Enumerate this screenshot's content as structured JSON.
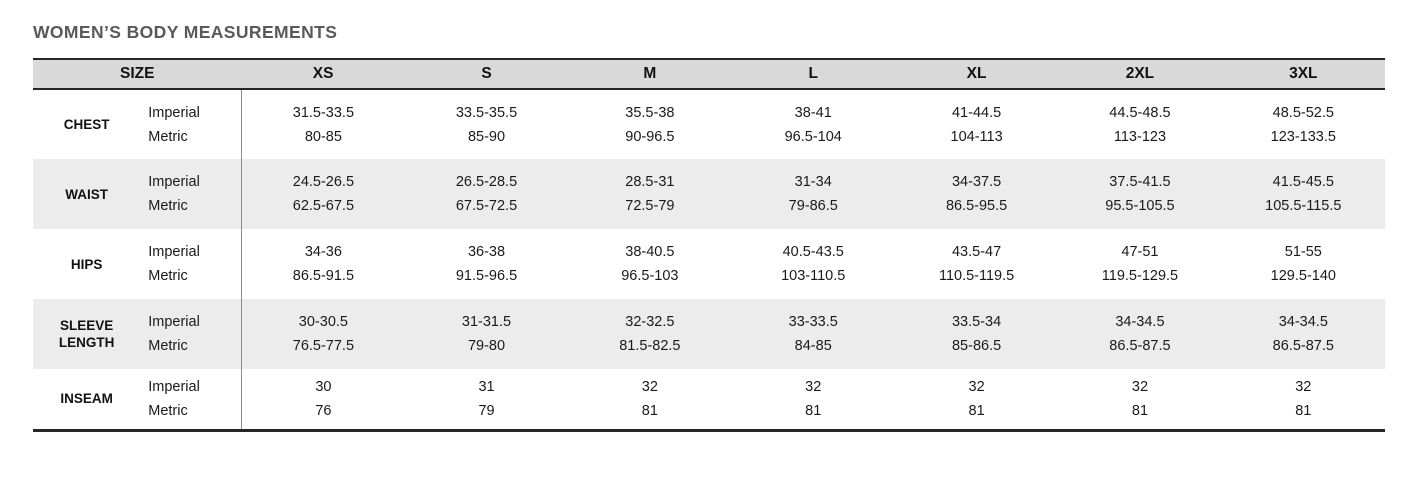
{
  "title": "WOMEN’S BODY MEASUREMENTS",
  "table": {
    "size_header": "SIZE",
    "sizes": [
      "XS",
      "S",
      "M",
      "L",
      "XL",
      "2XL",
      "3XL"
    ],
    "unit_labels": [
      "Imperial",
      "Metric"
    ],
    "rows": [
      {
        "label": "CHEST",
        "imperial": [
          "31.5-33.5",
          "33.5-35.5",
          "35.5-38",
          "38-41",
          "41-44.5",
          "44.5-48.5",
          "48.5-52.5"
        ],
        "metric": [
          "80-85",
          "85-90",
          "90-96.5",
          "96.5-104",
          "104-113",
          "113-123",
          "123-133.5"
        ]
      },
      {
        "label": "WAIST",
        "imperial": [
          "24.5-26.5",
          "26.5-28.5",
          "28.5-31",
          "31-34",
          "34-37.5",
          "37.5-41.5",
          "41.5-45.5"
        ],
        "metric": [
          "62.5-67.5",
          "67.5-72.5",
          "72.5-79",
          "79-86.5",
          "86.5-95.5",
          "95.5-105.5",
          "105.5-115.5"
        ]
      },
      {
        "label": "HIPS",
        "imperial": [
          "34-36",
          "36-38",
          "38-40.5",
          "40.5-43.5",
          "43.5-47",
          "47-51",
          "51-55"
        ],
        "metric": [
          "86.5-91.5",
          "91.5-96.5",
          "96.5-103",
          "103-110.5",
          "110.5-119.5",
          "119.5-129.5",
          "129.5-140"
        ]
      },
      {
        "label": "SLEEVE LENGTH",
        "imperial": [
          "30-30.5",
          "31-31.5",
          "32-32.5",
          "33-33.5",
          "33.5-34",
          "34-34.5",
          "34-34.5"
        ],
        "metric": [
          "76.5-77.5",
          "79-80",
          "81.5-82.5",
          "84-85",
          "85-86.5",
          "86.5-87.5",
          "86.5-87.5"
        ]
      },
      {
        "label": "INSEAM",
        "imperial": [
          "30",
          "31",
          "32",
          "32",
          "32",
          "32",
          "32"
        ],
        "metric": [
          "76",
          "79",
          "81",
          "81",
          "81",
          "81",
          "81"
        ]
      }
    ]
  },
  "colors": {
    "header_bg": "#d9d9d9",
    "shaded_row_bg": "#ececec",
    "border": "#262626",
    "divider": "#8c8c8c",
    "title_text": "#595959",
    "body_text": "#1a1a1a"
  }
}
